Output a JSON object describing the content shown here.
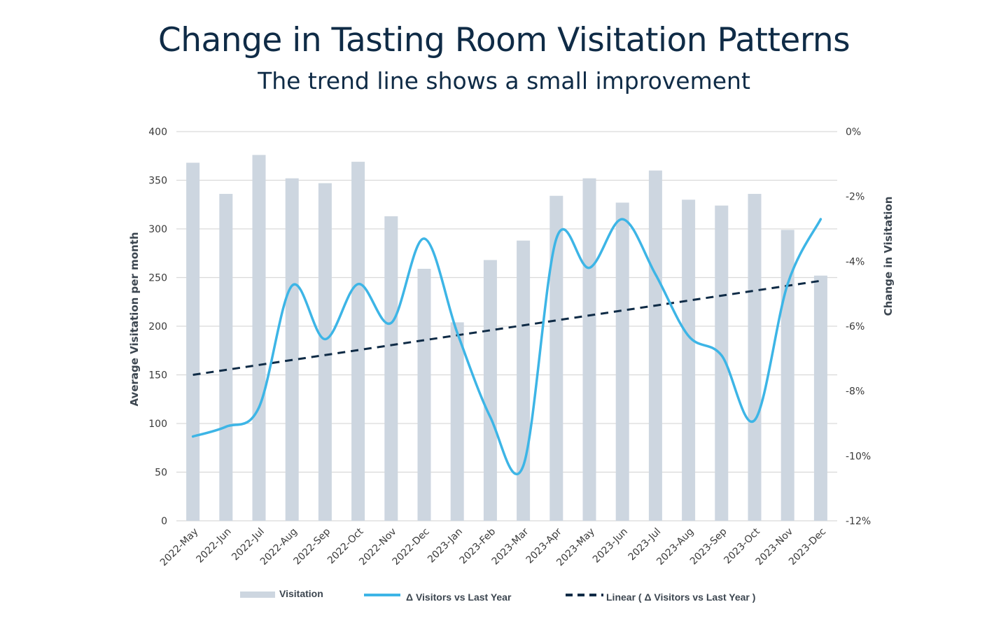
{
  "chart_data": {
    "type": "bar+line",
    "title": "Change in Tasting Room Visitation Patterns",
    "subtitle": "The trend line shows a small improvement",
    "categories": [
      "2022-May",
      "2022-Jun",
      "2022-Jul",
      "2022-Aug",
      "2022-Sep",
      "2022-Oct",
      "2022-Nov",
      "2022-Dec",
      "2023-Jan",
      "2023-Feb",
      "2023-Mar",
      "2023-Apr",
      "2023-May",
      "2023-Jun",
      "2023-Jul",
      "2023-Aug",
      "2023-Sep",
      "2023-Oct",
      "2023-Nov",
      "2023-Dec"
    ],
    "series": [
      {
        "name": "Visitation",
        "type": "bar",
        "axis": "left",
        "color": "#cdd6e0",
        "values": [
          368,
          336,
          376,
          352,
          347,
          369,
          313,
          259,
          204,
          268,
          288,
          334,
          352,
          327,
          360,
          330,
          324,
          336,
          299,
          252
        ]
      },
      {
        "name": "Δ Visitors vs Last Year",
        "type": "line",
        "axis": "right",
        "unit": "%",
        "color": "#3db5e6",
        "values": [
          -9.4,
          -9.1,
          -8.5,
          -4.75,
          -6.4,
          -4.7,
          -5.9,
          -3.3,
          -6.2,
          -8.8,
          -10.3,
          -3.3,
          -4.2,
          -2.7,
          -4.4,
          -6.3,
          -6.9,
          -8.9,
          -4.7,
          -2.7
        ]
      },
      {
        "name": "Linear ( Δ Visitors vs Last Year )",
        "type": "trendline",
        "axis": "right",
        "color": "#0f2b46",
        "start": -7.5,
        "end": -4.6
      }
    ],
    "ylabel": "Average Visitation per month",
    "y2label": "Change in Visitation",
    "ylim": [
      0,
      400
    ],
    "y2lim": [
      -12,
      0
    ],
    "yticks": [
      "0",
      "50",
      "100",
      "150",
      "200",
      "250",
      "300",
      "350",
      "400"
    ],
    "y2ticks": [
      "-12%",
      "-10%",
      "-8%",
      "-6%",
      "-4%",
      "-2%",
      "0%"
    ],
    "grid": true,
    "legend_position": "bottom"
  }
}
